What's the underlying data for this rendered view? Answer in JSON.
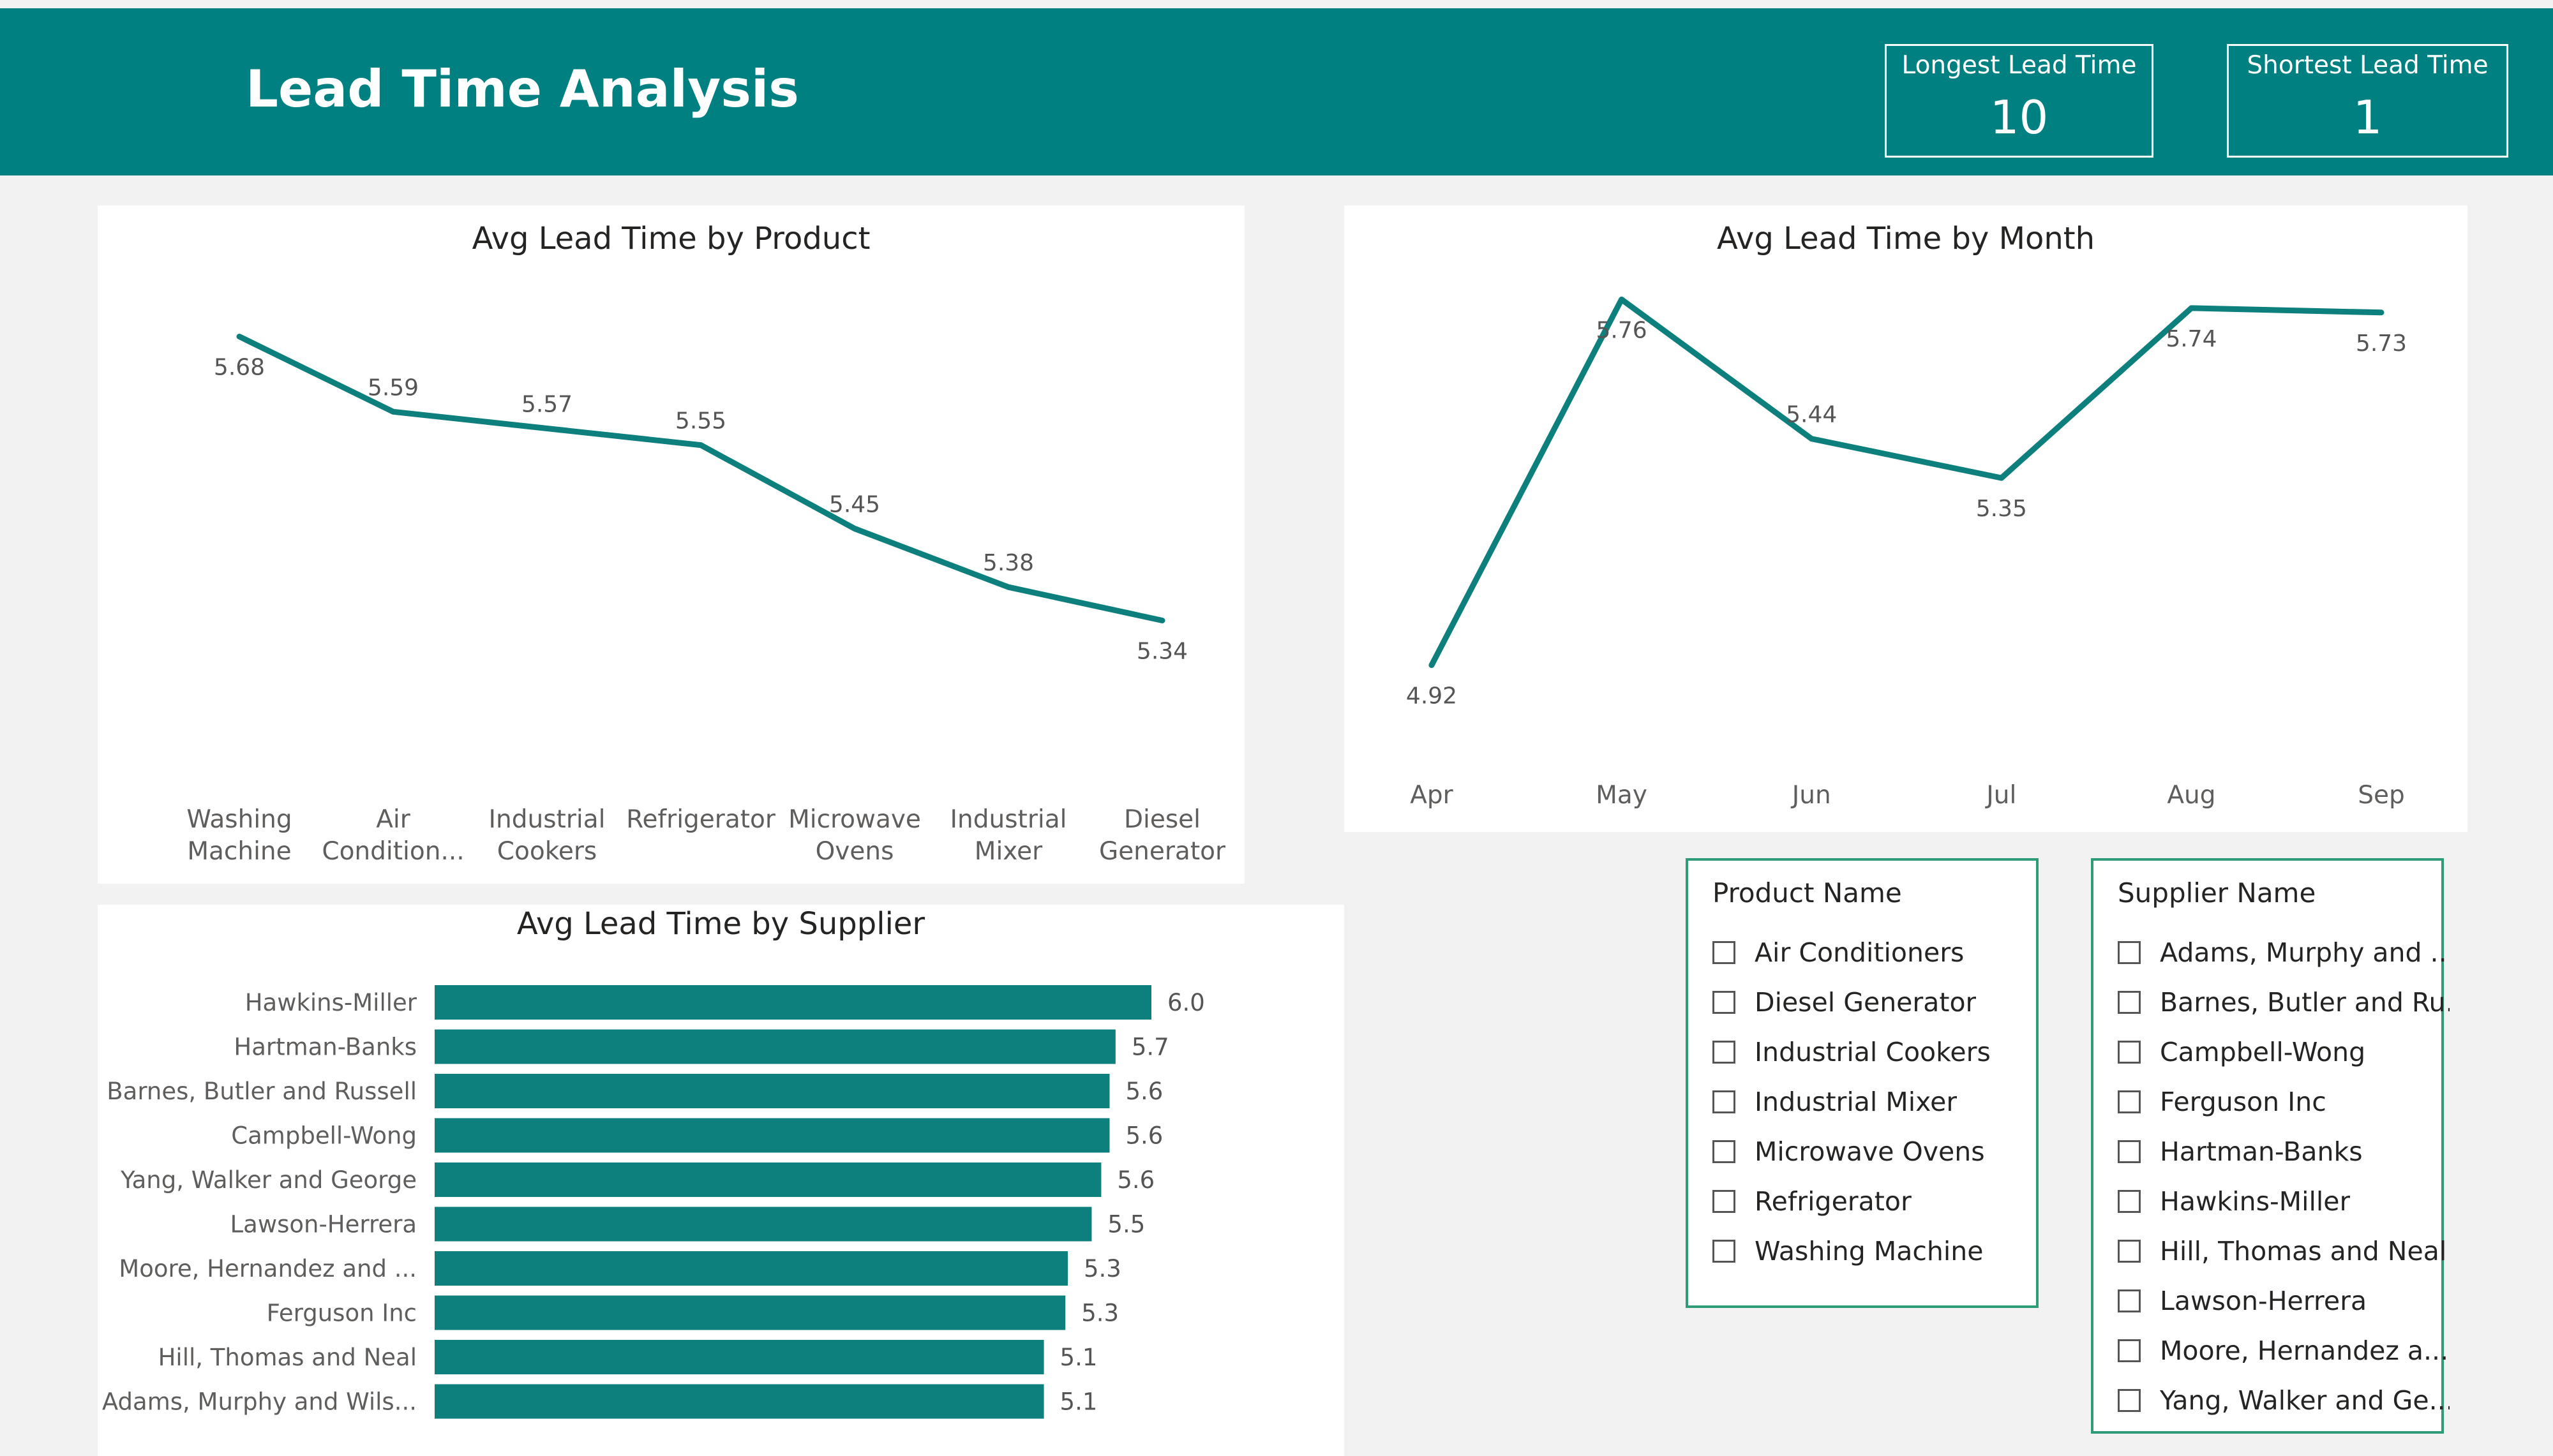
{
  "header": {
    "title": "Lead Time Analysis",
    "kpis": [
      {
        "label": "Longest Lead Time",
        "value": "10"
      },
      {
        "label": "Shortest Lead Time",
        "value": "1"
      }
    ]
  },
  "colors": {
    "accent": "#008080",
    "line": "#0d7f7c",
    "bar": "#0d7f7c",
    "slicer_border": "#2e9b79",
    "background": "#f2f2f2"
  },
  "charts": {
    "product": {
      "title": "Avg Lead Time by Product"
    },
    "month": {
      "title": "Avg Lead Time by Month"
    },
    "supplier": {
      "title": "Avg Lead Time by Supplier"
    }
  },
  "chart_data": [
    {
      "type": "line",
      "title": "Avg Lead Time by Product",
      "categories": [
        [
          "Washing",
          "Machine"
        ],
        [
          "Air",
          "Condition..."
        ],
        [
          "Industrial",
          "Cookers"
        ],
        [
          "Refrigerator"
        ],
        [
          "Microwave",
          "Ovens"
        ],
        [
          "Industrial",
          "Mixer"
        ],
        [
          "Diesel",
          "Generator"
        ]
      ],
      "values": [
        5.68,
        5.59,
        5.57,
        5.55,
        5.45,
        5.38,
        5.34
      ],
      "labels": [
        "5.68",
        "5.59",
        "5.57",
        "5.55",
        "5.45",
        "5.38",
        "5.34"
      ]
    },
    {
      "type": "line",
      "title": "Avg Lead Time by Month",
      "categories": [
        "Apr",
        "May",
        "Jun",
        "Jul",
        "Aug",
        "Sep"
      ],
      "values": [
        4.92,
        5.76,
        5.44,
        5.35,
        5.74,
        5.73
      ],
      "labels": [
        "4.92",
        "5.76",
        "5.44",
        "5.35",
        "5.74",
        "5.73"
      ]
    },
    {
      "type": "bar",
      "title": "Avg Lead Time by Supplier",
      "categories": [
        "Hawkins-Miller",
        "Hartman-Banks",
        "Barnes, Butler and Russell",
        "Campbell-Wong",
        "Yang, Walker and George",
        "Lawson-Herrera",
        "Moore, Hernandez and ...",
        "Ferguson Inc",
        "Hill, Thomas and Neal",
        "Adams, Murphy and Wils..."
      ],
      "values": [
        6.0,
        5.7,
        5.65,
        5.65,
        5.58,
        5.5,
        5.3,
        5.28,
        5.1,
        5.1
      ],
      "labels": [
        "6.0",
        "5.7",
        "5.6",
        "5.6",
        "5.6",
        "5.5",
        "5.3",
        "5.3",
        "5.1",
        "5.1"
      ]
    }
  ],
  "slicers": {
    "product": {
      "title": "Product Name",
      "items": [
        "Air Conditioners",
        "Diesel Generator",
        "Industrial Cookers",
        "Industrial Mixer",
        "Microwave Ovens",
        "Refrigerator",
        "Washing Machine"
      ]
    },
    "supplier": {
      "title": "Supplier Name",
      "items": [
        "Adams, Murphy and ...",
        "Barnes, Butler and Ru...",
        "Campbell-Wong",
        "Ferguson Inc",
        "Hartman-Banks",
        "Hawkins-Miller",
        "Hill, Thomas and Neal",
        "Lawson-Herrera",
        "Moore, Hernandez a...",
        "Yang, Walker and Ge..."
      ]
    }
  }
}
